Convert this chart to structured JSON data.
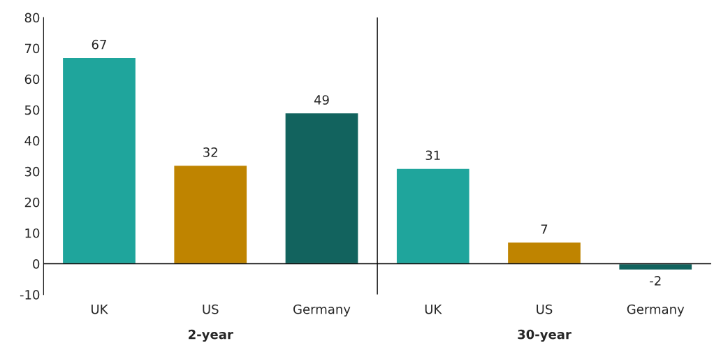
{
  "chart_data": {
    "type": "bar",
    "categories": [
      "UK",
      "US",
      "Germany",
      "UK",
      "US",
      "Germany"
    ],
    "values": [
      67,
      32,
      49,
      31,
      7,
      -2
    ],
    "colors": [
      "#1fa59c",
      "#bf8400",
      "#12635e",
      "#1fa59c",
      "#bf8400",
      "#12635e"
    ],
    "ylim": [
      -10,
      80
    ],
    "yticks": [
      -10,
      0,
      10,
      20,
      30,
      40,
      50,
      60,
      70,
      80
    ],
    "data_labels": true,
    "grid": false,
    "legend": false,
    "ref_lines": [
      {
        "axis": "y",
        "value": 0,
        "color": "#000000"
      }
    ],
    "annotations": [
      "2-year",
      "30-year"
    ]
  }
}
